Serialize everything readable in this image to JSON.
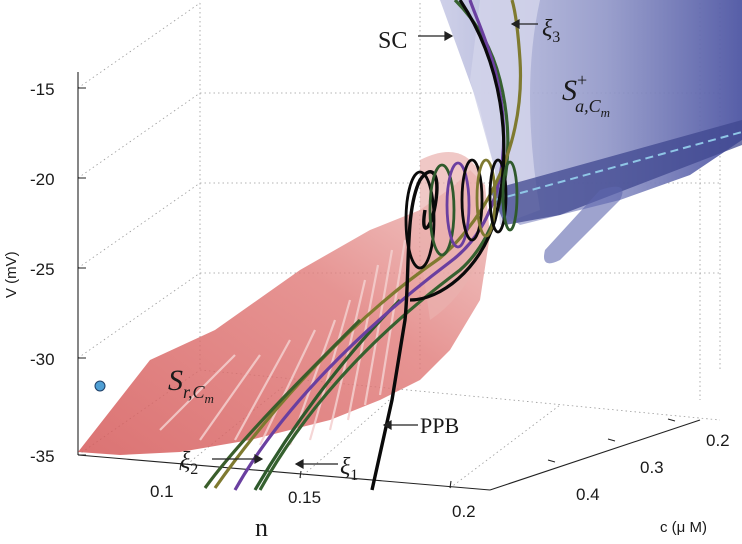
{
  "figure": {
    "axes": {
      "v_label": "V (mV)",
      "n_label": "n",
      "c_label": "c (μ M)",
      "v_ticks": [
        "-15",
        "-20",
        "-25",
        "-30",
        "-35"
      ],
      "n_ticks": [
        "0.1",
        "0.15",
        "0.2"
      ],
      "c_ticks": [
        "0.2",
        "0.3",
        "0.4"
      ]
    },
    "annotations": {
      "sc": "SC",
      "xi3_base": "ξ",
      "xi3_sub": "3",
      "xi2_base": "ξ",
      "xi2_sub": "2",
      "xi1_base": "ξ",
      "xi1_sub": "1",
      "ppb": "PPB",
      "s_attr_base": "S",
      "s_attr_sup": "+",
      "s_attr_sub": "a,C",
      "s_attr_subsub": "m",
      "s_rep_base": "S",
      "s_rep_sub": "r,C",
      "s_rep_subsub": "m"
    },
    "colors": {
      "repelling_sheet": "#d9605f",
      "attracting_sheet": "#5f67b0",
      "xi1": "#36612f",
      "xi2": "#6a3fa0",
      "xi3": "#7f7a30",
      "ppb": "#0a0a0a",
      "marker": "#4f9fd4"
    }
  }
}
